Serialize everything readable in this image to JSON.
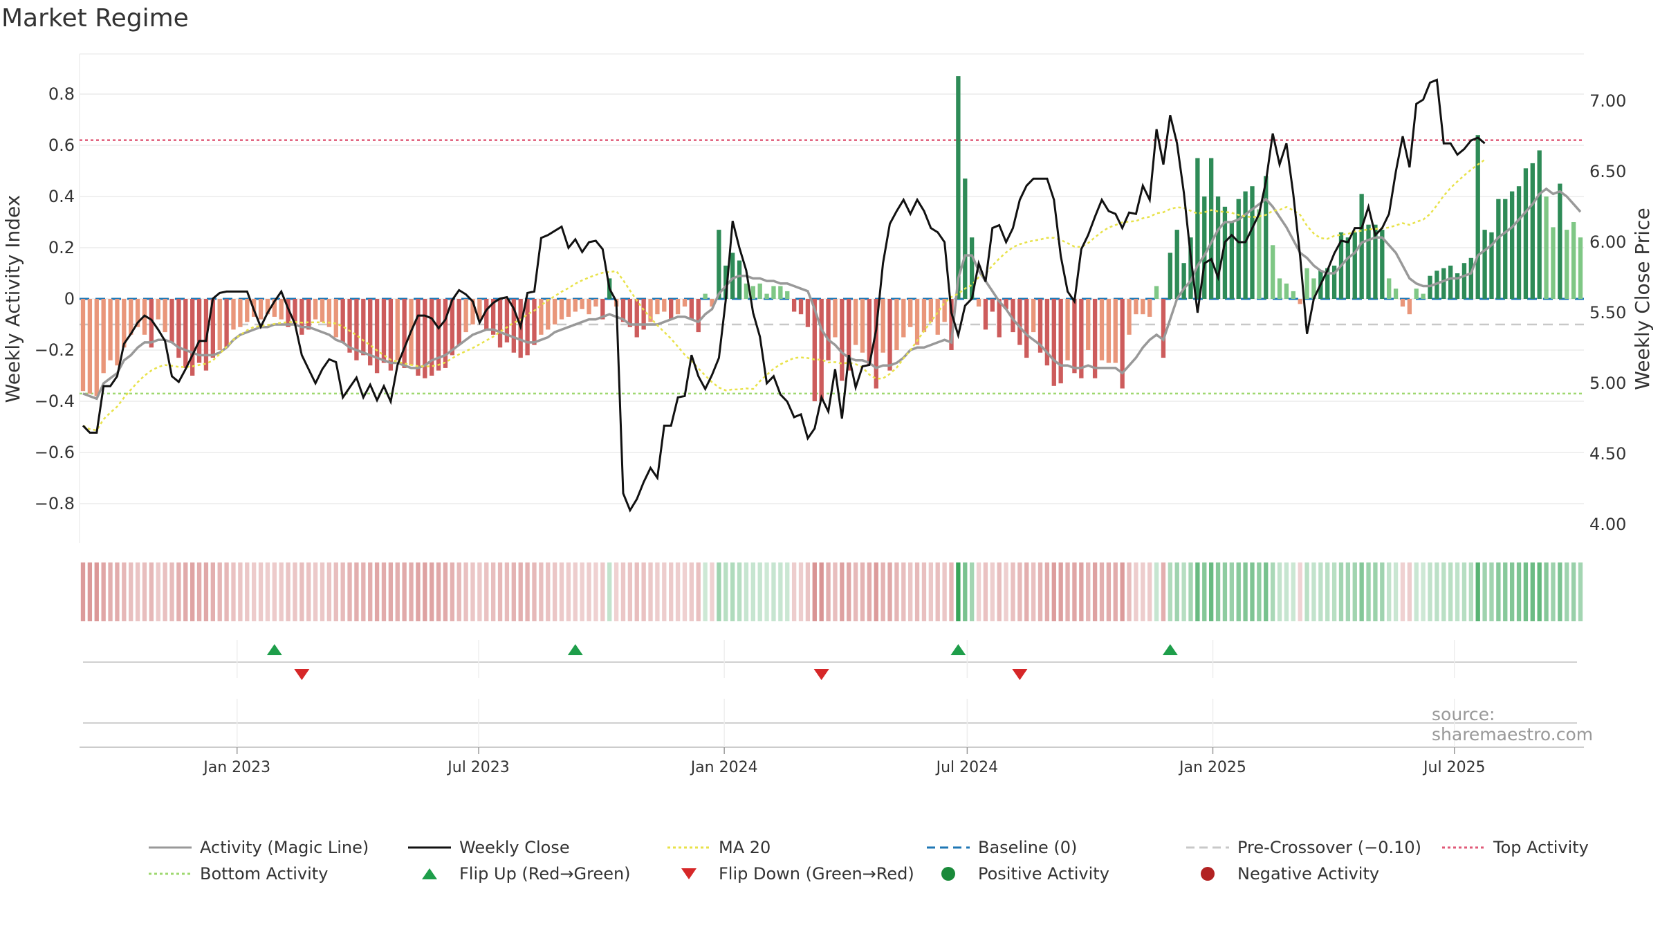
{
  "title": "Market Regime",
  "source": "source: sharemaestro.com",
  "legend": [
    {
      "label": "Activity (Magic Line)",
      "kind": "line",
      "color": "#999999",
      "dash": ""
    },
    {
      "label": "Weekly Close",
      "kind": "line",
      "color": "#111111",
      "dash": ""
    },
    {
      "label": "MA 20",
      "kind": "line",
      "color": "#e8e24a",
      "dash": "4,4"
    },
    {
      "label": "Baseline (0)",
      "kind": "line",
      "color": "#1f77b4",
      "dash": "12,7"
    },
    {
      "label": "Pre-Crossover (−0.10)",
      "kind": "line",
      "color": "#c8c8c8",
      "dash": "12,7"
    },
    {
      "label": "Top Activity",
      "kind": "line",
      "color": "#e05a78",
      "dash": "4,4"
    },
    {
      "label": "Bottom Activity",
      "kind": "line",
      "color": "#9fd870",
      "dash": "4,4"
    },
    {
      "label": "Flip Up (Red→Green)",
      "kind": "tri-up",
      "color": "#1e9e4a",
      "dash": ""
    },
    {
      "label": "Flip Down (Green→Red)",
      "kind": "tri-down",
      "color": "#d62728",
      "dash": ""
    },
    {
      "label": "Positive Activity",
      "kind": "dot",
      "color": "#1a8a3a",
      "dash": ""
    },
    {
      "label": "Negative Activity",
      "kind": "dot",
      "color": "#b22222",
      "dash": ""
    }
  ],
  "chart_data": {
    "type": "bar",
    "title": "Market Regime",
    "ylabel": "Weekly Activity Index",
    "y2label": "Weekly Close Price",
    "ylim": [
      -0.95,
      0.95
    ],
    "y2lim": [
      3.9,
      7.35
    ],
    "yticks": [
      -0.8,
      -0.6,
      -0.4,
      -0.2,
      0,
      0.2,
      0.4,
      0.6,
      0.8
    ],
    "ytick_labels": [
      "−0.8",
      "−0.6",
      "−0.4",
      "−0.2",
      "0",
      "0.2",
      "0.4",
      "0.6",
      "0.8"
    ],
    "y2ticks": [
      4.0,
      4.5,
      5.0,
      5.5,
      6.0,
      6.5,
      7.0
    ],
    "y2tick_labels": [
      "4.00",
      "4.50",
      "5.00",
      "5.50",
      "6.00",
      "6.50",
      "7.00"
    ],
    "x_start": "2022-09-05",
    "x_end": "2025-10-06",
    "xticks": [
      "2023-01-01",
      "2023-07-01",
      "2024-01-01",
      "2024-07-01",
      "2025-01-01",
      "2025-07-01"
    ],
    "xtick_labels": [
      "Jan 2023",
      "Jul 2023",
      "Jan 2024",
      "Jul 2024",
      "Jan 2025",
      "Jul 2025"
    ],
    "reference_lines": {
      "baseline": 0,
      "pre_crossover": -0.1,
      "top_activity": 0.62,
      "bottom_activity": -0.37
    },
    "grid": true,
    "legend_position": "bottom",
    "colors": {
      "pos_strong": "#2e8b57",
      "pos_light": "#7fc785",
      "neg_strong": "#cd5c5c",
      "neg_light": "#e9967a",
      "magic": "#999999",
      "close": "#111111",
      "ma": "#e8e24a",
      "baseline": "#1f77b4",
      "pre": "#c8c8c8",
      "top": "#e05a78",
      "bottom": "#9fd870",
      "flip_up": "#1e9e4a",
      "flip_down": "#d62728"
    },
    "activity": [
      -0.36,
      -0.37,
      -0.38,
      -0.29,
      -0.24,
      -0.26,
      -0.19,
      -0.14,
      -0.11,
      -0.14,
      -0.19,
      -0.08,
      -0.13,
      -0.17,
      -0.23,
      -0.27,
      -0.3,
      -0.25,
      -0.28,
      -0.23,
      -0.2,
      -0.19,
      -0.12,
      -0.11,
      -0.09,
      -0.07,
      -0.08,
      -0.06,
      -0.07,
      -0.08,
      -0.11,
      -0.1,
      -0.14,
      -0.12,
      -0.08,
      -0.09,
      -0.11,
      -0.15,
      -0.17,
      -0.21,
      -0.24,
      -0.22,
      -0.26,
      -0.29,
      -0.25,
      -0.28,
      -0.24,
      -0.27,
      -0.26,
      -0.3,
      -0.31,
      -0.3,
      -0.28,
      -0.27,
      -0.22,
      -0.18,
      -0.13,
      -0.1,
      -0.08,
      -0.12,
      -0.14,
      -0.19,
      -0.17,
      -0.21,
      -0.23,
      -0.22,
      -0.18,
      -0.14,
      -0.12,
      -0.1,
      -0.08,
      -0.07,
      -0.05,
      -0.04,
      -0.06,
      -0.03,
      -0.08,
      0.08,
      -0.03,
      -0.09,
      -0.11,
      -0.15,
      -0.12,
      -0.09,
      -0.06,
      -0.05,
      -0.08,
      -0.06,
      -0.03,
      -0.08,
      -0.13,
      0.02,
      -0.03,
      0.27,
      0.13,
      0.18,
      0.15,
      0.06,
      0.05,
      0.06,
      0.02,
      0.05,
      0.05,
      0.03,
      -0.05,
      -0.06,
      -0.11,
      -0.4,
      -0.4,
      -0.24,
      -0.15,
      -0.32,
      -0.28,
      -0.18,
      -0.21,
      -0.26,
      -0.35,
      -0.21,
      -0.28,
      -0.2,
      -0.15,
      -0.11,
      -0.18,
      -0.13,
      -0.09,
      -0.14,
      -0.09,
      -0.2,
      0.87,
      0.47,
      0.24,
      -0.03,
      -0.12,
      -0.05,
      -0.15,
      -0.04,
      -0.13,
      -0.18,
      -0.23,
      -0.13,
      -0.21,
      -0.26,
      -0.34,
      -0.33,
      -0.24,
      -0.29,
      -0.31,
      -0.2,
      -0.31,
      -0.24,
      -0.25,
      -0.25,
      -0.35,
      -0.14,
      -0.06,
      -0.06,
      -0.07,
      0.05,
      -0.23,
      0.18,
      0.27,
      0.14,
      0.24,
      0.55,
      0.4,
      0.55,
      0.4,
      0.36,
      0.3,
      0.39,
      0.42,
      0.44,
      0.35,
      0.48,
      0.21,
      0.08,
      0.06,
      0.03,
      -0.02,
      0.12,
      0.08,
      0.11,
      0.12,
      0.13,
      0.26,
      0.24,
      0.26,
      0.41,
      0.29,
      0.29,
      0.27,
      0.08,
      0.04,
      -0.03,
      -0.06,
      0.04,
      0.02,
      0.09,
      0.11,
      0.12,
      0.13,
      0.1,
      0.14,
      0.16,
      0.64,
      0.27,
      0.26,
      0.39,
      0.39,
      0.42,
      0.44,
      0.51,
      0.53,
      0.58,
      0.4,
      0.28,
      0.45,
      0.27,
      0.3,
      0.24
    ],
    "weekly_close": [
      4.7,
      4.65,
      4.65,
      4.98,
      4.98,
      5.05,
      5.28,
      5.35,
      5.43,
      5.48,
      5.45,
      5.38,
      5.3,
      5.05,
      5.01,
      5.1,
      5.2,
      5.3,
      5.3,
      5.6,
      5.64,
      5.65,
      5.65,
      5.65,
      5.65,
      5.52,
      5.4,
      5.5,
      5.58,
      5.65,
      5.53,
      5.42,
      5.2,
      5.1,
      5.0,
      5.1,
      5.17,
      5.15,
      4.9,
      4.97,
      5.04,
      4.9,
      4.99,
      4.88,
      4.98,
      4.87,
      5.13,
      5.25,
      5.37,
      5.48,
      5.48,
      5.46,
      5.39,
      5.45,
      5.59,
      5.66,
      5.63,
      5.58,
      5.43,
      5.52,
      5.57,
      5.6,
      5.61,
      5.53,
      5.4,
      5.64,
      5.65,
      6.03,
      6.05,
      6.08,
      6.11,
      5.96,
      6.02,
      5.93,
      6.0,
      6.01,
      5.95,
      5.67,
      5.58,
      4.22,
      4.1,
      4.18,
      4.3,
      4.4,
      4.33,
      4.7,
      4.7,
      4.9,
      4.91,
      5.2,
      5.05,
      4.96,
      5.06,
      5.18,
      5.59,
      6.15,
      5.96,
      5.8,
      5.5,
      5.33,
      5.0,
      5.05,
      4.92,
      4.87,
      4.76,
      4.78,
      4.61,
      4.68,
      4.9,
      4.8,
      5.1,
      4.75,
      5.2,
      4.97,
      5.12,
      5.13,
      5.38,
      5.85,
      6.13,
      6.22,
      6.3,
      6.2,
      6.3,
      6.22,
      6.1,
      6.07,
      6.0,
      5.5,
      5.34,
      5.55,
      5.6,
      5.85,
      5.72,
      6.1,
      6.12,
      6.0,
      6.1,
      6.3,
      6.4,
      6.45,
      6.45,
      6.45,
      6.3,
      5.9,
      5.65,
      5.58,
      5.95,
      6.05,
      6.18,
      6.3,
      6.22,
      6.2,
      6.1,
      6.21,
      6.2,
      6.4,
      6.3,
      6.8,
      6.55,
      6.9,
      6.7,
      6.35,
      5.9,
      5.5,
      5.85,
      5.88,
      5.75,
      6.0,
      6.05,
      6.0,
      6.0,
      6.1,
      6.2,
      6.43,
      6.77,
      6.55,
      6.7,
      6.34,
      5.9,
      5.35,
      5.6,
      5.7,
      5.8,
      5.92,
      6.01,
      6.0,
      6.1,
      6.1,
      6.25,
      6.05,
      6.1,
      6.2,
      6.5,
      6.75,
      6.53,
      6.98,
      7.01,
      7.13,
      7.15,
      6.7,
      6.7,
      6.62,
      6.66,
      6.72,
      6.74,
      6.7
    ],
    "magic_line": [
      -0.37,
      -0.38,
      -0.39,
      -0.33,
      -0.31,
      -0.29,
      -0.24,
      -0.22,
      -0.19,
      -0.17,
      -0.17,
      -0.16,
      -0.16,
      -0.17,
      -0.19,
      -0.2,
      -0.21,
      -0.22,
      -0.22,
      -0.22,
      -0.21,
      -0.19,
      -0.16,
      -0.14,
      -0.13,
      -0.12,
      -0.11,
      -0.11,
      -0.1,
      -0.1,
      -0.1,
      -0.1,
      -0.11,
      -0.11,
      -0.12,
      -0.13,
      -0.14,
      -0.16,
      -0.17,
      -0.19,
      -0.2,
      -0.21,
      -0.22,
      -0.23,
      -0.24,
      -0.25,
      -0.25,
      -0.26,
      -0.27,
      -0.27,
      -0.26,
      -0.24,
      -0.23,
      -0.22,
      -0.2,
      -0.18,
      -0.16,
      -0.14,
      -0.13,
      -0.12,
      -0.12,
      -0.13,
      -0.14,
      -0.15,
      -0.16,
      -0.17,
      -0.17,
      -0.16,
      -0.15,
      -0.13,
      -0.12,
      -0.11,
      -0.1,
      -0.09,
      -0.08,
      -0.08,
      -0.07,
      -0.06,
      -0.07,
      -0.08,
      -0.1,
      -0.1,
      -0.1,
      -0.1,
      -0.1,
      -0.09,
      -0.08,
      -0.07,
      -0.07,
      -0.08,
      -0.09,
      -0.06,
      -0.04,
      0.02,
      0.05,
      0.08,
      0.09,
      0.09,
      0.08,
      0.08,
      0.07,
      0.07,
      0.06,
      0.06,
      0.05,
      0.04,
      0.03,
      -0.04,
      -0.12,
      -0.16,
      -0.18,
      -0.21,
      -0.23,
      -0.24,
      -0.24,
      -0.25,
      -0.27,
      -0.26,
      -0.26,
      -0.25,
      -0.23,
      -0.2,
      -0.19,
      -0.19,
      -0.18,
      -0.17,
      -0.16,
      -0.17,
      0.08,
      0.17,
      0.17,
      0.11,
      0.07,
      0.03,
      -0.01,
      -0.04,
      -0.08,
      -0.11,
      -0.14,
      -0.16,
      -0.18,
      -0.21,
      -0.24,
      -0.26,
      -0.26,
      -0.27,
      -0.27,
      -0.26,
      -0.27,
      -0.27,
      -0.27,
      -0.27,
      -0.29,
      -0.26,
      -0.23,
      -0.19,
      -0.16,
      -0.14,
      -0.16,
      -0.08,
      0.0,
      0.04,
      0.07,
      0.13,
      0.17,
      0.22,
      0.27,
      0.3,
      0.3,
      0.31,
      0.33,
      0.35,
      0.37,
      0.39,
      0.36,
      0.32,
      0.28,
      0.23,
      0.18,
      0.16,
      0.13,
      0.11,
      0.1,
      0.1,
      0.13,
      0.16,
      0.18,
      0.22,
      0.23,
      0.24,
      0.24,
      0.21,
      0.18,
      0.13,
      0.08,
      0.06,
      0.05,
      0.05,
      0.06,
      0.07,
      0.08,
      0.08,
      0.09,
      0.1,
      0.17,
      0.19,
      0.21,
      0.24,
      0.26,
      0.28,
      0.31,
      0.34,
      0.37,
      0.41,
      0.43,
      0.41,
      0.42,
      0.4,
      0.37,
      0.34
    ]
  }
}
